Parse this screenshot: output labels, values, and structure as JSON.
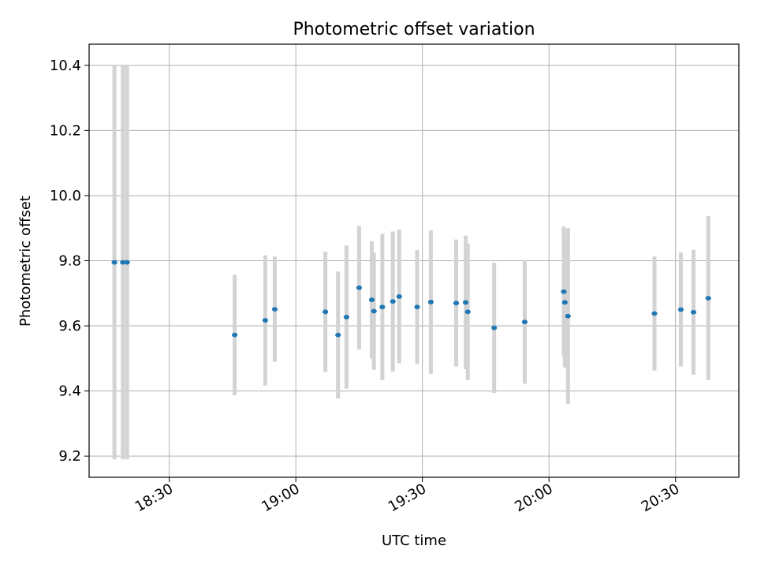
{
  "chart_data": {
    "type": "scatter",
    "title": "Photometric offset variation",
    "xlabel": "UTC time",
    "ylabel": "Photometric offset",
    "xlim": [
      "18:11",
      "20:45"
    ],
    "ylim": [
      9.135,
      10.465
    ],
    "xticks": [
      "18:30",
      "19:00",
      "19:30",
      "20:00",
      "20:30"
    ],
    "yticks": [
      "9.2",
      "9.4",
      "9.6",
      "9.8",
      "10.0",
      "10.2",
      "10.4"
    ],
    "grid": true,
    "colors": {
      "marker": "#1f77b4",
      "errorbar": "#d3d3d3",
      "grid": "#b0b0b0"
    },
    "points": [
      {
        "x": "18:17:00",
        "y": 9.795,
        "err": 0.605
      },
      {
        "x": "18:19:00",
        "y": 9.795,
        "err": 0.605
      },
      {
        "x": "18:20:00",
        "y": 9.795,
        "err": 0.605
      },
      {
        "x": "18:45:30",
        "y": 9.572,
        "err": 0.185
      },
      {
        "x": "18:52:45",
        "y": 9.617,
        "err": 0.2
      },
      {
        "x": "18:55:00",
        "y": 9.651,
        "err": 0.162
      },
      {
        "x": "19:07:00",
        "y": 9.643,
        "err": 0.185
      },
      {
        "x": "19:10:00",
        "y": 9.572,
        "err": 0.195
      },
      {
        "x": "19:12:00",
        "y": 9.627,
        "err": 0.22
      },
      {
        "x": "19:15:00",
        "y": 9.717,
        "err": 0.19
      },
      {
        "x": "19:18:00",
        "y": 9.68,
        "err": 0.18
      },
      {
        "x": "19:18:30",
        "y": 9.645,
        "err": 0.18
      },
      {
        "x": "19:20:30",
        "y": 9.658,
        "err": 0.225
      },
      {
        "x": "19:23:00",
        "y": 9.675,
        "err": 0.215
      },
      {
        "x": "19:24:30",
        "y": 9.69,
        "err": 0.205
      },
      {
        "x": "19:28:45",
        "y": 9.658,
        "err": 0.175
      },
      {
        "x": "19:32:00",
        "y": 9.673,
        "err": 0.22
      },
      {
        "x": "19:38:00",
        "y": 9.67,
        "err": 0.195
      },
      {
        "x": "19:40:15",
        "y": 9.672,
        "err": 0.205
      },
      {
        "x": "19:40:45",
        "y": 9.643,
        "err": 0.21
      },
      {
        "x": "19:47:00",
        "y": 9.594,
        "err": 0.2
      },
      {
        "x": "19:54:15",
        "y": 9.612,
        "err": 0.19
      },
      {
        "x": "20:03:30",
        "y": 9.705,
        "err": 0.2
      },
      {
        "x": "20:03:45",
        "y": 9.672,
        "err": 0.2
      },
      {
        "x": "20:04:30",
        "y": 9.63,
        "err": 0.27
      },
      {
        "x": "20:25:00",
        "y": 9.638,
        "err": 0.175
      },
      {
        "x": "20:31:15",
        "y": 9.65,
        "err": 0.175
      },
      {
        "x": "20:34:15",
        "y": 9.642,
        "err": 0.192
      },
      {
        "x": "20:37:45",
        "y": 9.685,
        "err": 0.252
      }
    ]
  }
}
